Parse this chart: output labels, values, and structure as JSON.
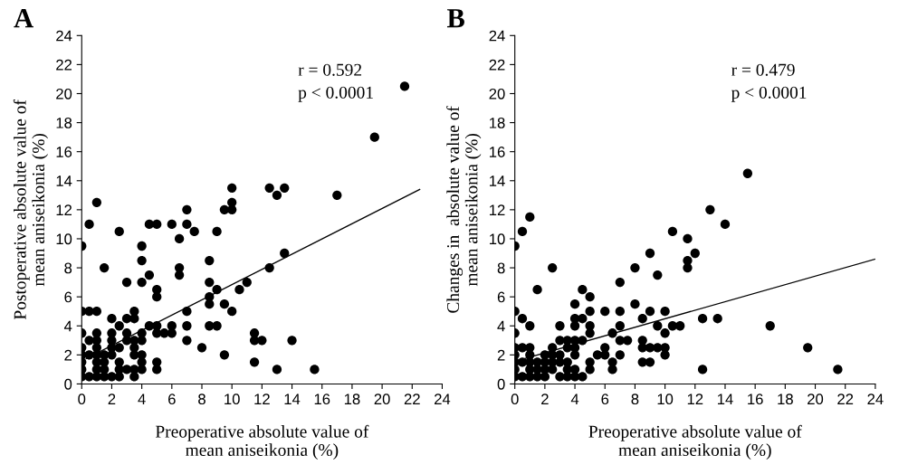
{
  "chart_data": [
    {
      "type": "scatter",
      "title": "A",
      "xlabel": "Preoperative absolute value of\nmean aniseikonia (%)",
      "ylabel": "Postoperative absolute value of\nmean aniseikonia (%)",
      "xlim": [
        0,
        24
      ],
      "ylim": [
        0,
        24
      ],
      "xticks": [
        0,
        2,
        4,
        6,
        8,
        10,
        12,
        14,
        16,
        18,
        20,
        22,
        24
      ],
      "yticks": [
        0,
        2,
        4,
        6,
        8,
        10,
        12,
        14,
        16,
        18,
        20,
        22,
        24
      ],
      "marker": "circle",
      "grid": false,
      "annotations": [
        "r = 0.592",
        "p < 0.0001"
      ],
      "series": [
        {
          "color": "#000000",
          "x": [
            0,
            0,
            0,
            0,
            0,
            0,
            0,
            0,
            0.5,
            0.5,
            0.5,
            0.5,
            0.5,
            1,
            1,
            1,
            1,
            1,
            1,
            1,
            1,
            1,
            1.5,
            1.5,
            1.5,
            1.5,
            1.5,
            2,
            2,
            2,
            2,
            2,
            2,
            2.5,
            2.5,
            2.5,
            2.5,
            2.5,
            2.5,
            3,
            3,
            3,
            3,
            3,
            3.5,
            3.5,
            3.5,
            3.5,
            3.5,
            3.5,
            3.5,
            4,
            4,
            4,
            4,
            4,
            4,
            4,
            4,
            4.5,
            4.5,
            4.5,
            5,
            5,
            5,
            5,
            5,
            5,
            5,
            5.5,
            6,
            6,
            6,
            6.5,
            6.5,
            6.5,
            7,
            7,
            7,
            7,
            7,
            7.5,
            8,
            8.5,
            8.5,
            8.5,
            8.5,
            8.5,
            9,
            9,
            9,
            9.5,
            9.5,
            9.5,
            10,
            10,
            10,
            10,
            10.5,
            11,
            11.5,
            11.5,
            11.5,
            12,
            12.5,
            12.5,
            13,
            13,
            13.5,
            13.5,
            14,
            15.5,
            17,
            19.5,
            21.5
          ],
          "values": [
            9.5,
            5,
            3.5,
            2.5,
            2,
            1.5,
            1,
            0.5,
            11,
            5,
            3,
            2,
            0.5,
            12.5,
            5,
            3.5,
            3,
            2.5,
            2,
            1.5,
            1,
            0.5,
            8,
            2,
            1.5,
            1,
            0.5,
            4.5,
            3.5,
            3,
            2.5,
            2,
            0.5,
            10.5,
            4,
            2.5,
            1.5,
            1,
            0.5,
            7,
            4.5,
            3.5,
            3,
            1,
            5,
            4.5,
            3,
            2.5,
            2,
            1,
            0.5,
            9.5,
            8.5,
            7,
            3.5,
            3,
            2,
            1.5,
            1,
            11,
            7.5,
            4,
            11,
            6.5,
            6,
            4,
            3.5,
            1.5,
            1,
            3.5,
            11,
            4,
            3.5,
            10,
            8,
            7.5,
            12,
            11,
            5,
            4,
            3,
            10.5,
            2.5,
            8.5,
            7,
            6,
            5.5,
            4,
            10.5,
            6.5,
            4,
            12,
            5.5,
            2,
            13.5,
            12.5,
            12,
            5,
            6.5,
            7,
            3.5,
            3,
            1.5,
            3,
            13.5,
            8,
            13,
            1,
            13.5,
            9,
            3,
            1,
            13,
            17,
            20.5
          ]
        },
        {
          "type": "line",
          "color": "#000000",
          "marker": "none",
          "x": [
            0.3,
            22.5
          ],
          "values": [
            1.75,
            13.4
          ]
        }
      ]
    },
    {
      "type": "scatter",
      "title": "B",
      "xlabel": "Preoperative absolute value of\nmean aniseikonia (%)",
      "ylabel": "Changes in  absolute value of\nmean aniseikonia (%)",
      "xlim": [
        0,
        24
      ],
      "ylim": [
        0,
        24
      ],
      "xticks": [
        0,
        2,
        4,
        6,
        8,
        10,
        12,
        14,
        16,
        18,
        20,
        22,
        24
      ],
      "yticks": [
        0,
        2,
        4,
        6,
        8,
        10,
        12,
        14,
        16,
        18,
        20,
        22,
        24
      ],
      "marker": "circle",
      "grid": false,
      "annotations": [
        "r = 0.479",
        "p < 0.0001"
      ],
      "series": [
        {
          "color": "#000000",
          "x": [
            0,
            0,
            0,
            0,
            0,
            0,
            0,
            0,
            0.5,
            0.5,
            0.5,
            0.5,
            0.5,
            1,
            1,
            1,
            1,
            1,
            1,
            1,
            1.5,
            1.5,
            1.5,
            1.5,
            2,
            2,
            2,
            2,
            2.5,
            2.5,
            2.5,
            2.5,
            2.5,
            3,
            3,
            3,
            3,
            3,
            3.5,
            3.5,
            3.5,
            3.5,
            3.5,
            4,
            4,
            4,
            4,
            4,
            4,
            4,
            4,
            4.5,
            4.5,
            4.5,
            4.5,
            5,
            5,
            5,
            5,
            5,
            5,
            5.5,
            6,
            6,
            6,
            6.5,
            6.5,
            6.5,
            7,
            7,
            7,
            7,
            7,
            7.5,
            8,
            8,
            8.5,
            8.5,
            8.5,
            8.5,
            9,
            9,
            9,
            9,
            9.5,
            9.5,
            9.5,
            10,
            10,
            10,
            10,
            10.5,
            10.5,
            11,
            11.5,
            11.5,
            11.5,
            12,
            12.5,
            12.5,
            13,
            13.5,
            14,
            15.5,
            17,
            19.5,
            21.5
          ],
          "values": [
            9.5,
            5,
            3.5,
            2.5,
            2,
            1.5,
            1,
            0.5,
            10.5,
            4.5,
            2.5,
            1.5,
            0.5,
            11.5,
            4,
            2.5,
            2,
            1.5,
            1,
            0.5,
            6.5,
            1.5,
            1,
            0.5,
            2,
            1.5,
            1,
            0.5,
            8,
            2.5,
            2,
            1.5,
            1,
            4,
            3,
            2,
            1.5,
            0.5,
            3,
            2.5,
            1.5,
            1,
            0.5,
            5.5,
            4.5,
            4,
            3,
            2.5,
            2,
            1,
            0.5,
            6.5,
            4.5,
            3,
            0.5,
            6,
            5,
            4,
            3.5,
            1.5,
            1,
            2,
            5,
            2.5,
            2,
            3.5,
            1.5,
            1,
            7,
            5,
            4,
            3,
            2,
            3,
            8,
            5.5,
            4.5,
            3,
            2.5,
            1.5,
            9,
            5,
            2.5,
            1.5,
            7.5,
            4,
            2.5,
            5,
            3.5,
            2.5,
            2,
            10.5,
            4,
            4,
            10,
            8.5,
            8,
            9,
            4.5,
            1,
            12,
            4.5,
            11,
            14.5,
            4,
            2.5,
            1
          ]
        },
        {
          "type": "line",
          "color": "#000000",
          "marker": "none",
          "x": [
            0.5,
            24
          ],
          "values": [
            1.7,
            8.6
          ]
        }
      ]
    }
  ]
}
